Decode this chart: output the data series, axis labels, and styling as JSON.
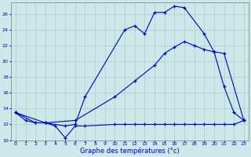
{
  "xlabel": "Graphe des températures (°c)",
  "background_color": "#cce8e8",
  "grid_color": "#aacccc",
  "line_color": "#0000cc",
  "xlim": [
    -0.5,
    23.5
  ],
  "ylim": [
    10,
    27.5
  ],
  "xticks": [
    0,
    1,
    2,
    3,
    4,
    5,
    6,
    7,
    8,
    9,
    10,
    11,
    12,
    13,
    14,
    15,
    16,
    17,
    18,
    19,
    20,
    21,
    22,
    23
  ],
  "yticks": [
    10,
    12,
    14,
    16,
    18,
    20,
    22,
    24,
    26
  ],
  "line1_x": [
    0,
    1,
    2,
    3,
    4,
    5,
    6,
    7,
    10,
    11,
    12,
    13,
    14,
    15,
    16,
    17,
    18,
    19,
    20,
    21,
    22,
    23
  ],
  "line1_y": [
    13.5,
    12.5,
    12.2,
    12.2,
    11.8,
    10.3,
    11.8,
    11.8,
    12,
    12,
    12,
    12,
    12,
    12,
    12,
    12,
    12,
    12,
    12,
    12,
    12,
    12.5
  ],
  "line2_x": [
    0,
    2,
    3,
    5,
    6,
    7,
    11,
    12,
    13,
    14,
    15,
    16,
    17,
    19,
    20,
    21,
    22,
    23
  ],
  "line2_y": [
    13.5,
    12.2,
    12.2,
    11.8,
    12,
    15.5,
    24,
    24.5,
    23.5,
    26.2,
    26.2,
    27,
    26.8,
    23.5,
    21.2,
    16.8,
    13.5,
    12.5
  ],
  "line3_x": [
    0,
    3,
    6,
    10,
    12,
    14,
    15,
    16,
    17,
    18,
    19,
    20,
    21,
    23
  ],
  "line3_y": [
    13.5,
    12.2,
    12.5,
    15.5,
    17.5,
    19.5,
    21.0,
    21.8,
    22.5,
    22.0,
    21.5,
    21.2,
    21.0,
    12.5
  ]
}
